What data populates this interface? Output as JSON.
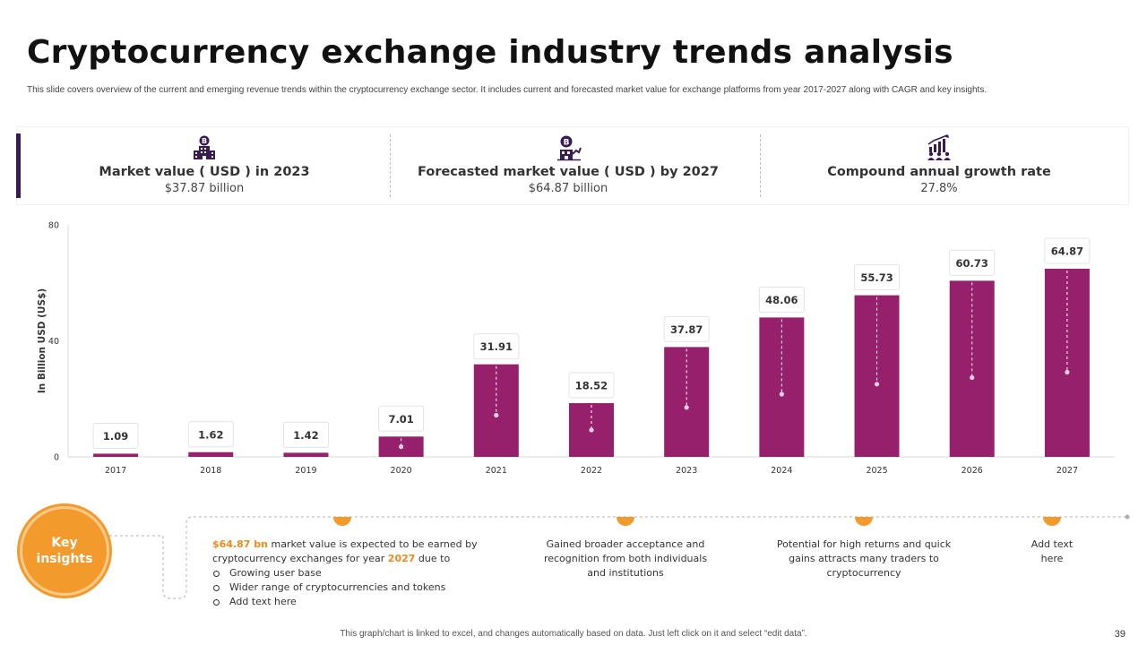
{
  "header": {
    "title": "Cryptocurrency exchange industry trends analysis",
    "subtitle": "This slide covers overview of the current and emerging revenue trends within the cryptocurrency exchange sector. It includes current and forecasted market value for exchange platforms from year 2017-2027 along with CAGR and key insights."
  },
  "kpis": [
    {
      "icon": "bitcoin-building-icon",
      "label": "Market value ( USD ) in 2023",
      "value": "$37.87 billion"
    },
    {
      "icon": "bitcoin-growth-icon",
      "label": "Forecasted market value ( USD ) by 2027",
      "value": "$64.87 billion"
    },
    {
      "icon": "growth-chart-people-icon",
      "label": "Compound annual growth rate",
      "value": "27.8%"
    }
  ],
  "chart_data": {
    "type": "bar",
    "categories": [
      "2017",
      "2018",
      "2019",
      "2020",
      "2021",
      "2022",
      "2023",
      "2024",
      "2025",
      "2026",
      "2027"
    ],
    "values": [
      1.09,
      1.62,
      1.42,
      7.01,
      31.91,
      18.52,
      37.87,
      48.06,
      55.73,
      60.73,
      64.87
    ],
    "value_labels": [
      "1.09",
      "1.62",
      "1.42",
      "7.01",
      "31.91",
      "18.52",
      "37.87",
      "48.06",
      "55.73",
      "60.73",
      "64.87"
    ],
    "y_ticks": [
      "0",
      "40",
      "80"
    ],
    "ylim": [
      0,
      80
    ],
    "ylabel": "In Billion USD (US$)",
    "xlabel": "",
    "bar_color": "#96206b",
    "grid": false
  },
  "insights": {
    "badge": "Key insights",
    "first": {
      "highlight_value": "$64.87 bn",
      "text_a": " market value is expected to be earned by cryptocurrency exchanges for year ",
      "highlight_year": "2027",
      "text_b": " due to",
      "bullets": [
        "Growing user base",
        "Wider range of cryptocurrencies and tokens",
        "Add text here"
      ]
    },
    "second": "Gained broader acceptance and recognition from both individuals and institutions",
    "third": "Potential for high returns and quick gains attracts many traders to cryptocurrency",
    "fourth": "Add text here",
    "accent_color": "#f39a2c"
  },
  "footer": {
    "note": "This graph/chart is linked to excel, and changes automatically based on data. Just left click on it and select “edit data”.",
    "page_number": "39"
  }
}
